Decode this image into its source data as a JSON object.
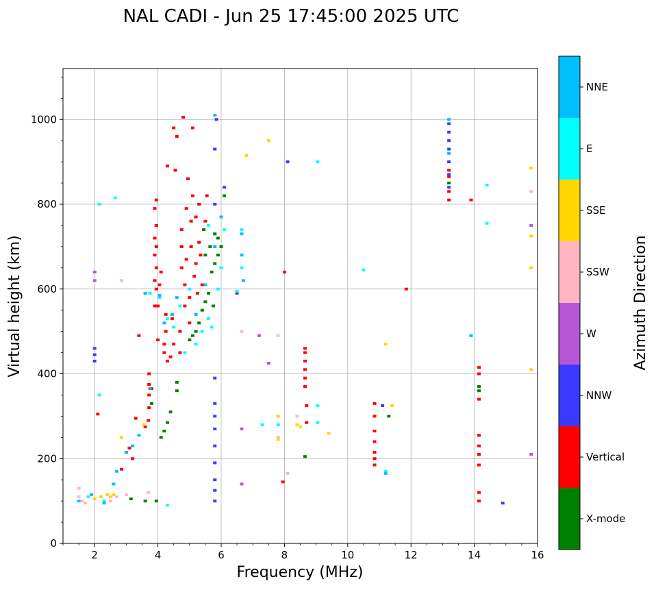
{
  "chart_data": {
    "type": "scatter",
    "title": "NAL CADI - Jun 25 17:45:00 2025 UTC",
    "xlabel": "Frequency (MHz)",
    "ylabel": "Virtual height (km)",
    "xlim": [
      1,
      16
    ],
    "ylim": [
      0,
      1120
    ],
    "xticks": [
      2,
      4,
      6,
      8,
      10,
      12,
      14,
      16
    ],
    "yticks": [
      0,
      200,
      400,
      600,
      800,
      1000
    ],
    "grid": true,
    "colorbar": {
      "label": "Azimuth Direction",
      "entries": [
        {
          "name": "X-mode",
          "color": "#008000"
        },
        {
          "name": "Vertical",
          "color": "#ff0000"
        },
        {
          "name": "NNW",
          "color": "#3a3aff"
        },
        {
          "name": "W",
          "color": "#b657d6"
        },
        {
          "name": "SSW",
          "color": "#ffb6c1"
        },
        {
          "name": "SSE",
          "color": "#ffd700"
        },
        {
          "name": "E",
          "color": "#00ffff"
        },
        {
          "name": "NNE",
          "color": "#00bfff"
        }
      ]
    },
    "series": [
      {
        "name": "Vertical",
        "color": "#ff0000",
        "points": [
          [
            2.1,
            305
          ],
          [
            2.85,
            175
          ],
          [
            3.0,
            215
          ],
          [
            3.1,
            225
          ],
          [
            3.2,
            200
          ],
          [
            3.3,
            295
          ],
          [
            3.4,
            490
          ],
          [
            3.6,
            275
          ],
          [
            3.7,
            290
          ],
          [
            3.72,
            320
          ],
          [
            3.72,
            350
          ],
          [
            3.72,
            375
          ],
          [
            3.72,
            400
          ],
          [
            3.9,
            560
          ],
          [
            3.9,
            620
          ],
          [
            3.9,
            680
          ],
          [
            3.9,
            720
          ],
          [
            3.9,
            790
          ],
          [
            3.95,
            600
          ],
          [
            3.95,
            650
          ],
          [
            3.95,
            700
          ],
          [
            3.95,
            750
          ],
          [
            3.95,
            810
          ],
          [
            4.0,
            480
          ],
          [
            4.0,
            560
          ],
          [
            4.05,
            610
          ],
          [
            4.1,
            640
          ],
          [
            4.2,
            450
          ],
          [
            4.2,
            470
          ],
          [
            4.25,
            500
          ],
          [
            4.25,
            540
          ],
          [
            4.3,
            430
          ],
          [
            4.3,
            890
          ],
          [
            4.4,
            440
          ],
          [
            4.45,
            530
          ],
          [
            4.5,
            470
          ],
          [
            4.5,
            980
          ],
          [
            4.55,
            880
          ],
          [
            4.6,
            960
          ],
          [
            4.7,
            450
          ],
          [
            4.7,
            500
          ],
          [
            4.75,
            650
          ],
          [
            4.75,
            700
          ],
          [
            4.75,
            740
          ],
          [
            4.8,
            1005
          ],
          [
            4.85,
            560
          ],
          [
            4.85,
            610
          ],
          [
            4.9,
            670
          ],
          [
            4.9,
            790
          ],
          [
            4.95,
            860
          ],
          [
            5.0,
            520
          ],
          [
            5.0,
            580
          ],
          [
            5.05,
            700
          ],
          [
            5.05,
            760
          ],
          [
            5.1,
            980
          ],
          [
            5.1,
            820
          ],
          [
            5.15,
            630
          ],
          [
            5.2,
            770
          ],
          [
            5.2,
            660
          ],
          [
            5.25,
            590
          ],
          [
            5.3,
            800
          ],
          [
            5.3,
            710
          ],
          [
            5.35,
            680
          ],
          [
            5.4,
            610
          ],
          [
            5.5,
            760
          ],
          [
            5.55,
            820
          ],
          [
            8.0,
            640
          ],
          [
            8.65,
            370
          ],
          [
            8.65,
            390
          ],
          [
            8.65,
            410
          ],
          [
            8.65,
            430
          ],
          [
            8.65,
            450
          ],
          [
            8.65,
            460
          ],
          [
            8.7,
            325
          ],
          [
            8.7,
            285
          ],
          [
            10.85,
            330
          ],
          [
            10.85,
            300
          ],
          [
            10.85,
            265
          ],
          [
            10.85,
            240
          ],
          [
            10.85,
            215
          ],
          [
            10.85,
            200
          ],
          [
            10.85,
            185
          ],
          [
            11.85,
            600
          ],
          [
            13.2,
            880
          ],
          [
            13.2,
            865
          ],
          [
            13.2,
            830
          ],
          [
            13.2,
            810
          ],
          [
            13.9,
            810
          ],
          [
            14.15,
            415
          ],
          [
            14.15,
            400
          ],
          [
            14.15,
            340
          ],
          [
            14.15,
            255
          ],
          [
            14.15,
            230
          ],
          [
            14.15,
            210
          ],
          [
            14.15,
            185
          ],
          [
            14.15,
            120
          ],
          [
            14.15,
            100
          ],
          [
            7.95,
            145
          ]
        ]
      },
      {
        "name": "X-mode",
        "color": "#008000",
        "points": [
          [
            3.15,
            105
          ],
          [
            3.6,
            100
          ],
          [
            3.95,
            100
          ],
          [
            3.8,
            330
          ],
          [
            3.8,
            365
          ],
          [
            4.1,
            250
          ],
          [
            4.2,
            265
          ],
          [
            4.3,
            285
          ],
          [
            4.4,
            310
          ],
          [
            4.6,
            360
          ],
          [
            4.6,
            380
          ],
          [
            5.0,
            480
          ],
          [
            5.1,
            490
          ],
          [
            5.2,
            500
          ],
          [
            5.3,
            520
          ],
          [
            5.4,
            550
          ],
          [
            5.5,
            570
          ],
          [
            5.6,
            590
          ],
          [
            5.7,
            640
          ],
          [
            5.8,
            660
          ],
          [
            5.9,
            720
          ],
          [
            6.0,
            700
          ],
          [
            5.65,
            700
          ],
          [
            5.5,
            680
          ],
          [
            5.45,
            740
          ],
          [
            5.8,
            730
          ],
          [
            5.9,
            680
          ],
          [
            5.75,
            560
          ],
          [
            6.1,
            820
          ],
          [
            8.65,
            205
          ],
          [
            11.3,
            300
          ],
          [
            14.15,
            360
          ],
          [
            14.15,
            370
          ],
          [
            13.2,
            850
          ]
        ]
      },
      {
        "name": "NNW",
        "color": "#3a3aff",
        "points": [
          [
            2.0,
            430
          ],
          [
            2.0,
            445
          ],
          [
            2.0,
            460
          ],
          [
            5.8,
            100
          ],
          [
            5.8,
            125
          ],
          [
            5.8,
            150
          ],
          [
            5.8,
            190
          ],
          [
            5.8,
            230
          ],
          [
            5.8,
            270
          ],
          [
            5.8,
            300
          ],
          [
            5.8,
            330
          ],
          [
            5.8,
            390
          ],
          [
            5.8,
            800
          ],
          [
            5.8,
            930
          ],
          [
            5.85,
            1000
          ],
          [
            6.1,
            840
          ],
          [
            6.5,
            590
          ],
          [
            8.1,
            900
          ],
          [
            11.1,
            325
          ],
          [
            13.2,
            990
          ],
          [
            13.2,
            970
          ],
          [
            13.2,
            950
          ],
          [
            13.2,
            930
          ],
          [
            13.2,
            900
          ],
          [
            13.2,
            870
          ],
          [
            13.2,
            840
          ],
          [
            14.9,
            95
          ]
        ]
      },
      {
        "name": "W",
        "color": "#b657d6",
        "points": [
          [
            2.0,
            620
          ],
          [
            2.0,
            640
          ],
          [
            2.0,
            640
          ],
          [
            6.65,
            140
          ],
          [
            6.65,
            270
          ],
          [
            7.2,
            490
          ],
          [
            7.5,
            425
          ],
          [
            15.8,
            750
          ],
          [
            15.8,
            210
          ],
          [
            3.75,
            365
          ]
        ]
      },
      {
        "name": "SSW",
        "color": "#ffb6c1",
        "points": [
          [
            1.5,
            110
          ],
          [
            1.5,
            130
          ],
          [
            1.6,
            100
          ],
          [
            1.7,
            95
          ],
          [
            2.5,
            100
          ],
          [
            2.7,
            110
          ],
          [
            3.0,
            115
          ],
          [
            3.7,
            120
          ],
          [
            6.65,
            500
          ],
          [
            7.8,
            490
          ],
          [
            7.8,
            250
          ],
          [
            8.1,
            165
          ],
          [
            8.4,
            300
          ],
          [
            2.85,
            620
          ],
          [
            15.8,
            830
          ]
        ]
      },
      {
        "name": "SSE",
        "color": "#ffd700",
        "points": [
          [
            2.0,
            105
          ],
          [
            2.2,
            110
          ],
          [
            2.4,
            115
          ],
          [
            2.5,
            110
          ],
          [
            2.6,
            115
          ],
          [
            2.85,
            250
          ],
          [
            3.55,
            280
          ],
          [
            7.5,
            950
          ],
          [
            7.8,
            300
          ],
          [
            7.8,
            245
          ],
          [
            8.4,
            280
          ],
          [
            8.5,
            275
          ],
          [
            9.4,
            260
          ],
          [
            11.2,
            470
          ],
          [
            11.4,
            325
          ],
          [
            15.8,
            885
          ],
          [
            15.8,
            725
          ],
          [
            15.8,
            650
          ],
          [
            15.8,
            410
          ],
          [
            6.8,
            915
          ]
        ]
      },
      {
        "name": "E",
        "color": "#00ffff",
        "points": [
          [
            1.8,
            110
          ],
          [
            2.3,
            100
          ],
          [
            2.15,
            350
          ],
          [
            2.15,
            800
          ],
          [
            2.65,
            815
          ],
          [
            4.3,
            90
          ],
          [
            3.75,
            590
          ],
          [
            4.05,
            580
          ],
          [
            4.3,
            530
          ],
          [
            4.5,
            510
          ],
          [
            4.7,
            560
          ],
          [
            5.0,
            600
          ],
          [
            5.2,
            470
          ],
          [
            5.4,
            500
          ],
          [
            5.6,
            530
          ],
          [
            5.7,
            510
          ],
          [
            5.9,
            600
          ],
          [
            6.0,
            650
          ],
          [
            5.6,
            750
          ],
          [
            6.1,
            740
          ],
          [
            6.5,
            595
          ],
          [
            6.65,
            740
          ],
          [
            6.65,
            650
          ],
          [
            7.3,
            280
          ],
          [
            7.8,
            280
          ],
          [
            9.05,
            900
          ],
          [
            9.05,
            325
          ],
          [
            9.05,
            285
          ],
          [
            10.5,
            645
          ],
          [
            11.2,
            170
          ],
          [
            14.4,
            845
          ],
          [
            14.4,
            755
          ],
          [
            13.9,
            490
          ],
          [
            4.85,
            450
          ]
        ]
      },
      {
        "name": "NNE",
        "color": "#00bfff",
        "points": [
          [
            1.5,
            100
          ],
          [
            1.9,
            115
          ],
          [
            2.3,
            95
          ],
          [
            2.6,
            140
          ],
          [
            2.7,
            170
          ],
          [
            3.0,
            215
          ],
          [
            3.2,
            230
          ],
          [
            3.4,
            255
          ],
          [
            3.6,
            590
          ],
          [
            4.05,
            585
          ],
          [
            4.2,
            520
          ],
          [
            4.45,
            540
          ],
          [
            4.6,
            580
          ],
          [
            5.2,
            540
          ],
          [
            5.5,
            610
          ],
          [
            5.8,
            700
          ],
          [
            6.0,
            770
          ],
          [
            6.65,
            730
          ],
          [
            6.65,
            680
          ],
          [
            6.7,
            620
          ],
          [
            11.2,
            165
          ],
          [
            13.2,
            920
          ],
          [
            13.2,
            1000
          ],
          [
            13.9,
            490
          ],
          [
            5.8,
            1010
          ]
        ]
      }
    ]
  }
}
